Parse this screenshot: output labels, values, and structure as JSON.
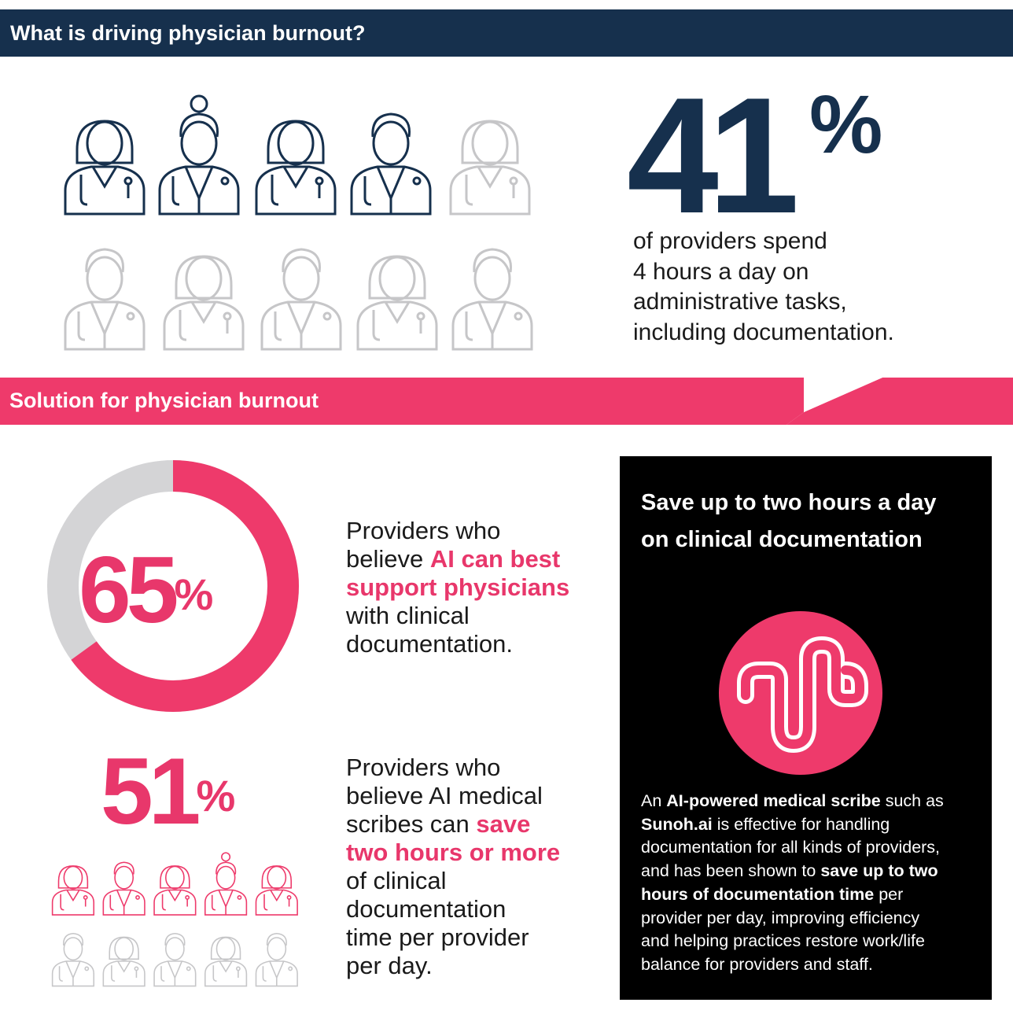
{
  "sections": {
    "driving_title": "What is driving physician burnout?",
    "solution_title": "Solution for physician burnout"
  },
  "stat41": {
    "number": "41",
    "percent": "%",
    "lines": [
      "of providers spend",
      "4 hours a day on",
      "administrative tasks,",
      "including documentation."
    ]
  },
  "stat65": {
    "number": "65",
    "percent": "%",
    "value_fraction": 0.65,
    "line1": "Providers who",
    "line2_pre": "believe ",
    "line2_hl": "AI can best",
    "line3_hl": "support physicians",
    "line4": "with clinical",
    "line5": "documentation."
  },
  "stat51": {
    "number": "51",
    "percent": "%",
    "line1": "Providers who",
    "line2": "believe AI medical",
    "line3_pre": "scribes can ",
    "line3_hl": "save",
    "line4_hl": "two hours or more",
    "line5": "of clinical",
    "line6": "documentation",
    "line7": "time per provider",
    "line8": "per day."
  },
  "callout": {
    "title_line1": "Save up to two hours a day",
    "title_line2": "on clinical documentation",
    "body": {
      "l1_pre": "An ",
      "l1_b": "AI-powered medical scribe",
      "l1_post": " such as",
      "l2_b": "Sunoh.ai",
      "l2_post": " is effective for handling",
      "l3": "documentation for all kinds of providers,",
      "l4_pre": "and has been shown to ",
      "l4_b": "save up to two",
      "l5_b": "hours of documentation time",
      "l5_post": " per",
      "l6": "provider per day, improving efficiency",
      "l7": "and helping practices restore work/life",
      "l8": "balance for providers and staff."
    }
  },
  "colors": {
    "navy": "#16304d",
    "pink": "#e8376b",
    "gray": "#c6c6c8",
    "black": "#000000"
  },
  "icons": {
    "top_grid_highlighted": 4,
    "top_grid_total": 10,
    "bottom_grid_highlighted": 5,
    "bottom_grid_total": 10
  }
}
